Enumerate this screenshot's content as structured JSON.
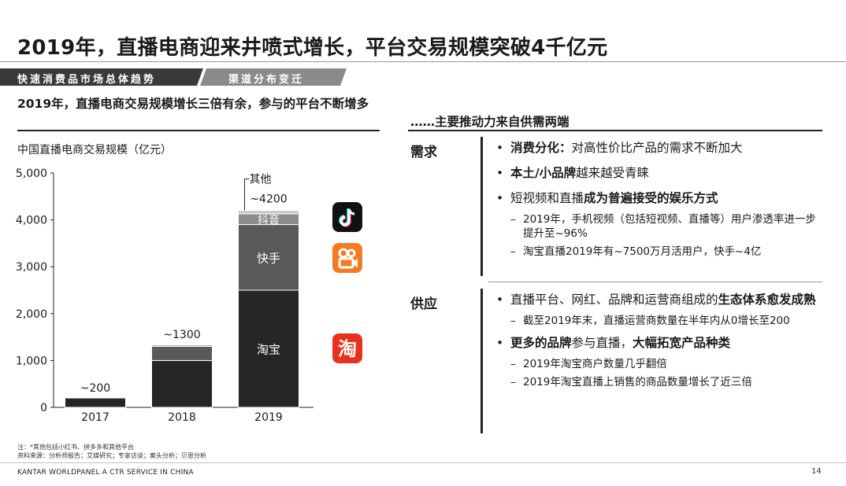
{
  "title": "2019年，直播电商迎来井喷式增长，平台交易规模突破4千亿元",
  "tabs": [
    "快速消费品市场总体趋势",
    "渠道分布变迁"
  ],
  "left_heading": "2019年，直播电商交易规模增长三倍有余，参与的平台不断增多",
  "right_heading": "……主要推动力来自供需两端",
  "chart_data": {
    "type": "bar",
    "stacked": true,
    "ylabel": "中国直播电商交易规模（亿元）",
    "categories": [
      "2017",
      "2018",
      "2019"
    ],
    "ylim": [
      0,
      5000
    ],
    "yticks": [
      "0",
      "1,000",
      "2,000",
      "3,000",
      "4,000",
      "5,000"
    ],
    "totals_labels": [
      "~200",
      "~1300",
      "~4200"
    ],
    "series": [
      {
        "name": "淘宝",
        "values": [
          200,
          1000,
          2500
        ],
        "color": "#262626"
      },
      {
        "name": "快手",
        "values": [
          0,
          300,
          1400
        ],
        "color": "#595959"
      },
      {
        "name": "抖音",
        "values": [
          0,
          30,
          230
        ],
        "color": "#8c8c8c"
      },
      {
        "name": "其他",
        "values": [
          0,
          10,
          70
        ],
        "color": "#c8c8c8"
      }
    ]
  },
  "icons": [
    "douyin-icon",
    "kuaishou-icon",
    "taobao-icon"
  ],
  "demand": {
    "label": "需求",
    "items": [
      {
        "bold": "消费分化：",
        "text": "对高性价比产品的需求不断加大"
      },
      {
        "bold": "本土/小品牌",
        "text": "越来越受青睐"
      },
      {
        "text": "短视频和直播",
        "bold": "成为普遍接受的娱乐方式"
      }
    ],
    "subitems": [
      "2019年，手机视频（包括短视频、直播等）用户渗透率进一步提升至~96%",
      "淘宝直播2019年有~7500万月活用户，快手~4亿"
    ]
  },
  "supply": {
    "label": "供应",
    "item1_text": "直播平台、网红、品牌和运营商组成的",
    "item1_bold": "生态体系愈发成熟",
    "sub1": "截至2019年末，直播运营商数量在半年内从0增长至200",
    "item2_bold1": "更多的品牌",
    "item2_text": "参与直播，",
    "item2_bold2": "大幅拓宽产品种类",
    "sub2": "2019年淘宝商户数量几乎翻倍",
    "sub3": "2019年淘宝直播上销售的商品数量增长了近三倍"
  },
  "footnote": [
    "注：*其他包括小红书、拼多多和其他平台",
    "资料来源：分析师报告；艾媒研究；专家访谈；案头分析；贝恩分析"
  ],
  "footer_brand": "KANTAR WORLDPANEL A CTR SERVICE IN CHINA",
  "page_number": "14",
  "colors": {
    "tab_dark": "#3a3a3a",
    "tab_light": "#8a8a8a",
    "rule": "#222222"
  }
}
